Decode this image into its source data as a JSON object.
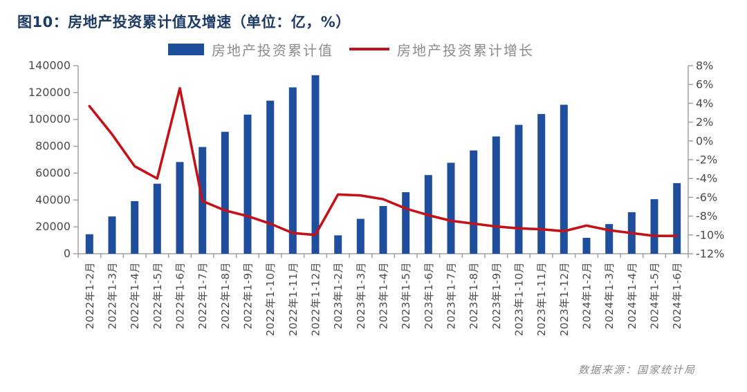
{
  "figure": {
    "title": "图10：房地产投资累计值及增速（单位：亿，%）",
    "source": "数据来源：国家统计局"
  },
  "legend": {
    "bar_label": "房地产投资累计值",
    "line_label": "房地产投资累计增长"
  },
  "colors": {
    "title_text": "#1C3A66",
    "bar_fill": "#1F4E9C",
    "line_stroke": "#C41218",
    "axis_line": "#A0A0A0",
    "tick_label": "#4A4A4A",
    "legend_text": "#8C8C8C",
    "source_text": "#8C8C8C"
  },
  "chart_data": {
    "type": "bar+line",
    "title": "图10：房地产投资累计值及增速（单位：亿，%）",
    "categories": [
      "2022年1-2月",
      "2022年1-3月",
      "2022年1-4月",
      "2022年1-5月",
      "2022年1-6月",
      "2022年1-7月",
      "2022年1-8月",
      "2022年1-9月",
      "2022年1-10月",
      "2022年1-11月",
      "2022年1-12月",
      "2023年1-2月",
      "2023年1-3月",
      "2023年1-4月",
      "2023年1-5月",
      "2023年1-6月",
      "2023年1-7月",
      "2023年1-8月",
      "2023年1-9月",
      "2023年1-10月",
      "2023年1-11月",
      "2023年1-12月",
      "2024年1-2月",
      "2024年1-3月",
      "2024年1-4月",
      "2024年1-5月",
      "2024年1-6月"
    ],
    "series": [
      {
        "name": "房地产投资累计值",
        "chart_type": "bar",
        "axis": "left",
        "unit": "亿",
        "values": [
          14499,
          27765,
          39154,
          52134,
          68314,
          79462,
          90809,
          103559,
          113945,
          123863,
          132895,
          13669,
          25974,
          35514,
          45821,
          58550,
          67717,
          76900,
          87269,
          95922,
          104045,
          110913,
          11842,
          22082,
          30928,
          40632,
          52529
        ]
      },
      {
        "name": "房地产投资累计增长",
        "chart_type": "line",
        "axis": "right",
        "unit": "%",
        "values": [
          3.7,
          0.7,
          -2.7,
          -4.0,
          5.6,
          -6.4,
          -7.4,
          -8.0,
          -8.8,
          -9.8,
          -10.0,
          -5.7,
          -5.8,
          -6.2,
          -7.2,
          -7.9,
          -8.5,
          -8.8,
          -9.1,
          -9.3,
          -9.4,
          -9.6,
          -9.0,
          -9.5,
          -9.8,
          -10.1,
          -10.1
        ]
      }
    ],
    "left_axis": {
      "min": 0,
      "max": 140000,
      "step": 20000,
      "tick_labels": [
        "140000",
        "120000",
        "100000",
        "80000",
        "60000",
        "40000",
        "20000",
        "0"
      ]
    },
    "right_axis": {
      "min": -12,
      "max": 8,
      "step": 2,
      "tick_labels": [
        "8%",
        "6%",
        "4%",
        "2%",
        "0%",
        "-2%",
        "-4%",
        "-6%",
        "-8%",
        "-10%",
        "-12%"
      ]
    },
    "grid": "off",
    "legend_position": "top"
  }
}
